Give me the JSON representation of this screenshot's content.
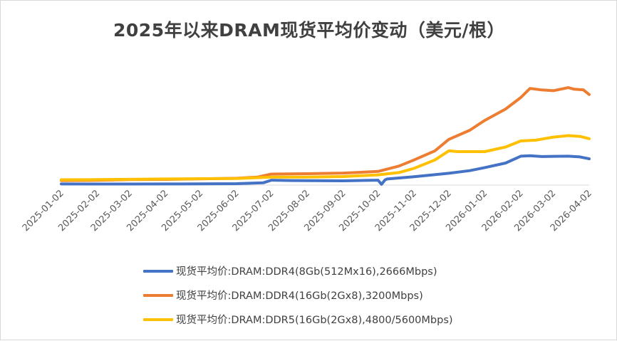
{
  "chart_data": {
    "type": "line",
    "title": "2025年以来DRAM现货平均价变动（美元/根）",
    "categories": [
      "2025-01-02",
      "2025-02-02",
      "2025-03-02",
      "2025-04-02",
      "2025-05-02",
      "2025-06-02",
      "2025-07-02",
      "2025-08-02",
      "2025-09-02",
      "2025-10-02",
      "2025-11-02",
      "2025-12-02",
      "2026-01-02",
      "2026-02-02",
      "2026-03-02",
      "2026-04-02"
    ],
    "grid": false,
    "legend_position": "bottom",
    "ylim": [
      0,
      130
    ],
    "y_axis_labels_visible": false,
    "series": [
      {
        "name": "现货平均价:DRAM:DDR4(8Gb(512Mx16),2666Mbps)",
        "color": "#4472C4",
        "points": [
          [
            "2025-01-02",
            1.5
          ],
          [
            "2025-02-02",
            1.4
          ],
          [
            "2025-03-02",
            1.4
          ],
          [
            "2025-04-02",
            1.5
          ],
          [
            "2025-05-02",
            1.6
          ],
          [
            "2025-06-02",
            1.9
          ],
          [
            "2025-06-25",
            3.0
          ],
          [
            "2025-07-02",
            6.5
          ],
          [
            "2025-07-20",
            6.0
          ],
          [
            "2025-08-02",
            5.8
          ],
          [
            "2025-09-02",
            5.6
          ],
          [
            "2025-10-02",
            6.5
          ],
          [
            "2025-10-05",
            1.0
          ],
          [
            "2025-10-08",
            6.8
          ],
          [
            "2025-10-10",
            8.0
          ],
          [
            "2025-11-02",
            11.0
          ],
          [
            "2025-12-02",
            15.5
          ],
          [
            "2025-12-20",
            19.0
          ],
          [
            "2026-01-02",
            23.0
          ],
          [
            "2026-01-20",
            29.0
          ],
          [
            "2026-02-02",
            38.0
          ],
          [
            "2026-02-10",
            38.5
          ],
          [
            "2026-02-20",
            37.5
          ],
          [
            "2026-03-02",
            37.8
          ],
          [
            "2026-03-15",
            38.0
          ],
          [
            "2026-03-25",
            37.0
          ],
          [
            "2026-04-02",
            34.5
          ]
        ]
      },
      {
        "name": "现货平均价:DRAM:DDR4(16Gb(2Gx8),3200Mbps)",
        "color": "#ED7D31",
        "points": [
          [
            "2025-01-02",
            6.0
          ],
          [
            "2025-02-02",
            6.3
          ],
          [
            "2025-03-02",
            7.2
          ],
          [
            "2025-04-02",
            7.5
          ],
          [
            "2025-05-02",
            8.2
          ],
          [
            "2025-06-02",
            9.0
          ],
          [
            "2025-06-20",
            10.5
          ],
          [
            "2025-07-02",
            14.5
          ],
          [
            "2025-08-02",
            15.0
          ],
          [
            "2025-09-02",
            15.8
          ],
          [
            "2025-10-02",
            18.0
          ],
          [
            "2025-10-20",
            25.0
          ],
          [
            "2025-11-02",
            33.0
          ],
          [
            "2025-11-20",
            45.0
          ],
          [
            "2025-12-02",
            60.0
          ],
          [
            "2025-12-20",
            72.0
          ],
          [
            "2026-01-02",
            85.0
          ],
          [
            "2026-01-20",
            100.0
          ],
          [
            "2026-02-02",
            115.0
          ],
          [
            "2026-02-10",
            127.0
          ],
          [
            "2026-02-20",
            125.0
          ],
          [
            "2026-03-02",
            124.0
          ],
          [
            "2026-03-15",
            128.0
          ],
          [
            "2026-03-20",
            126.0
          ],
          [
            "2026-03-28",
            125.0
          ],
          [
            "2026-04-02",
            119.0
          ]
        ]
      },
      {
        "name": "现货平均价:DRAM:DDR5(16Gb(2Gx8),4800/5600Mbps)",
        "color": "#FFC000",
        "points": [
          [
            "2025-01-02",
            7.0
          ],
          [
            "2025-02-02",
            7.2
          ],
          [
            "2025-03-02",
            7.6
          ],
          [
            "2025-04-02",
            8.0
          ],
          [
            "2025-05-02",
            8.4
          ],
          [
            "2025-06-02",
            8.6
          ],
          [
            "2025-07-02",
            10.5
          ],
          [
            "2025-08-02",
            10.5
          ],
          [
            "2025-09-02",
            11.2
          ],
          [
            "2025-10-02",
            13.5
          ],
          [
            "2025-10-20",
            16.5
          ],
          [
            "2025-11-02",
            22.0
          ],
          [
            "2025-11-20",
            33.0
          ],
          [
            "2025-12-02",
            45.0
          ],
          [
            "2025-12-10",
            44.0
          ],
          [
            "2026-01-02",
            44.0
          ],
          [
            "2026-01-20",
            50.0
          ],
          [
            "2026-02-02",
            58.0
          ],
          [
            "2026-02-15",
            59.0
          ],
          [
            "2026-03-02",
            63.0
          ],
          [
            "2026-03-15",
            65.0
          ],
          [
            "2026-03-25",
            64.0
          ],
          [
            "2026-04-02",
            61.0
          ]
        ]
      }
    ]
  }
}
